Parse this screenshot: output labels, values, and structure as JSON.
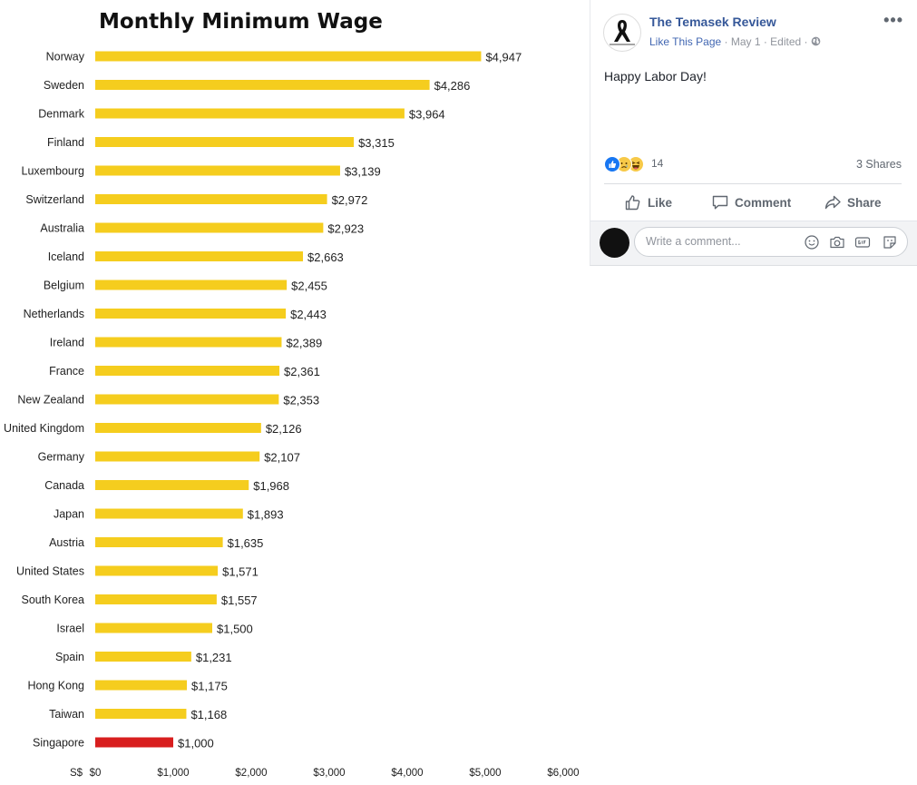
{
  "chart_data": {
    "type": "bar",
    "orientation": "horizontal",
    "title": "Monthly Minimum Wage",
    "categories": [
      "Norway",
      "Sweden",
      "Denmark",
      "Finland",
      "Luxembourg",
      "Switzerland",
      "Australia",
      "Iceland",
      "Belgium",
      "Netherlands",
      "Ireland",
      "France",
      "New Zealand",
      "United Kingdom",
      "Germany",
      "Canada",
      "Japan",
      "Austria",
      "United States",
      "South Korea",
      "Israel",
      "Spain",
      "Hong Kong",
      "Taiwan",
      "Singapore"
    ],
    "values": [
      4947,
      4286,
      3964,
      3315,
      3139,
      2972,
      2923,
      2663,
      2455,
      2443,
      2389,
      2361,
      2353,
      2126,
      2107,
      1968,
      1893,
      1635,
      1571,
      1557,
      1500,
      1231,
      1175,
      1168,
      1000
    ],
    "value_labels": [
      "$4,947",
      "$4,286",
      "$3,964",
      "$3,315",
      "$3,139",
      "$2,972",
      "$2,923",
      "$2,663",
      "$2,455",
      "$2,443",
      "$2,389",
      "$2,361",
      "$2,353",
      "$2,126",
      "$2,107",
      "$1,968",
      "$1,893",
      "$1,635",
      "$1,571",
      "$1,557",
      "$1,500",
      "$1,231",
      "$1,175",
      "$1,168",
      "$1,000"
    ],
    "xlim": [
      0,
      6000
    ],
    "x_unit_label": "S$",
    "x_ticks": [
      "$0",
      "$1,000",
      "$2,000",
      "$3,000",
      "$4,000",
      "$5,000",
      "$6,000"
    ],
    "bar_color": "#f5cd1e",
    "highlight_color": "#d81e1e",
    "highlight_category": "Singapore",
    "grid": false,
    "legend": "none"
  },
  "post": {
    "page_name": "The Temasek Review",
    "like_page": "Like This Page",
    "date_meta": " · May 1 · Edited · ",
    "privacy_icon": "globe-icon",
    "more_label": "•••",
    "text": "Happy Labor Day!",
    "reaction_count": "14",
    "reaction_icons": [
      "like-icon",
      "sad-icon",
      "haha-icon"
    ],
    "shares": "3 Shares",
    "actions": {
      "like": "Like",
      "comment": "Comment",
      "share": "Share"
    },
    "comment_placeholder": "Write a comment...",
    "accent_color": "#365899"
  }
}
